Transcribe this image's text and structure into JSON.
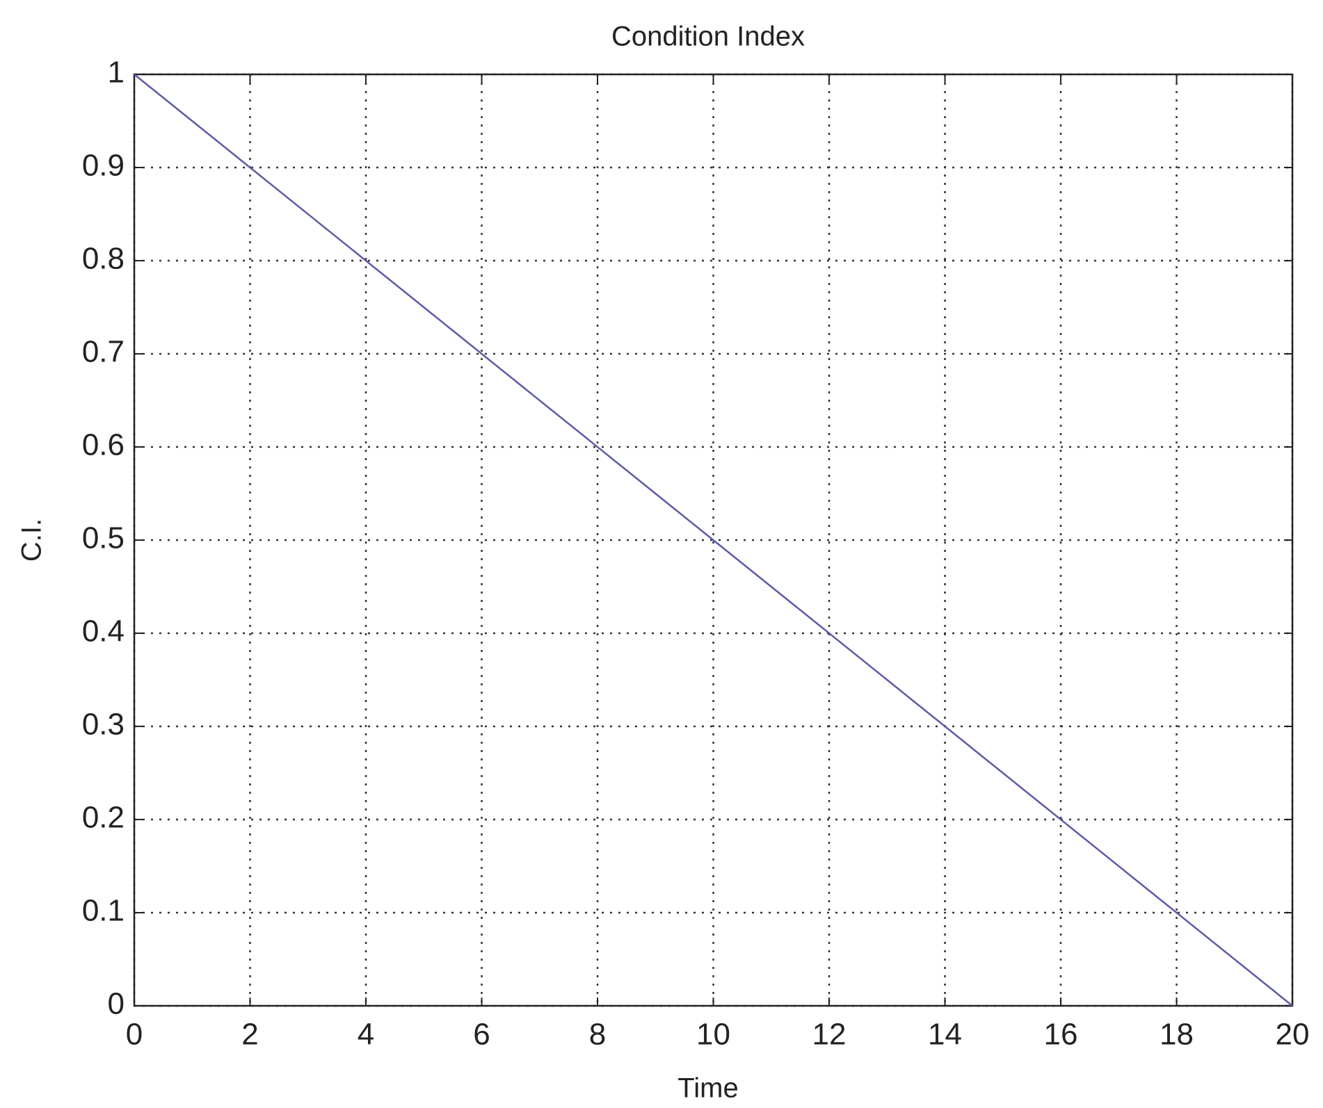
{
  "chart_data": {
    "type": "line",
    "title": "Condition Index",
    "x_label": "Time",
    "y_label": "C.I.",
    "x": [
      0,
      20
    ],
    "series": [
      {
        "name": "C.I.",
        "color": "#5a5aa8",
        "values": [
          1,
          0
        ]
      }
    ],
    "xlim": [
      0,
      20
    ],
    "xticks": [
      0,
      2,
      4,
      6,
      8,
      10,
      12,
      14,
      16,
      18,
      20
    ],
    "ylim": [
      0,
      1
    ],
    "yticks": [
      0,
      0.1,
      0.2,
      0.3,
      0.4,
      0.5,
      0.6,
      0.7,
      0.8,
      0.9,
      1
    ],
    "grid": true
  }
}
